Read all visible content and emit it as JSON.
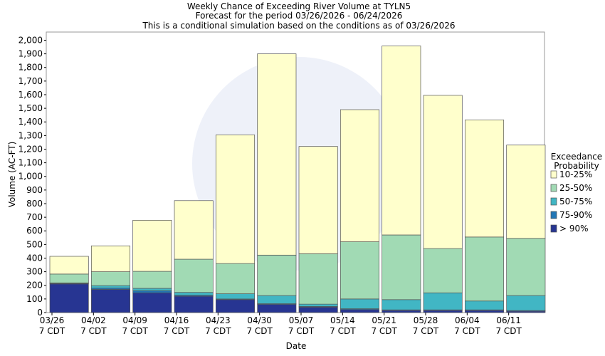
{
  "chart_data": {
    "type": "stacked_bar",
    "title": [
      "Weekly Chance of Exceeding River Volume at TYLN5",
      "Forecast for the period 03/26/2026 - 06/24/2026",
      "This is a conditional simulation based on the conditions as of 03/26/2026"
    ],
    "x_label": "Date",
    "y_label": "Volume (AC-FT)",
    "legend_title": "Exceedance Probability",
    "categories": [
      "03/26\n7 CDT",
      "04/02\n7 CDT",
      "04/09\n7 CDT",
      "04/16\n7 CDT",
      "04/23\n7 CDT",
      "04/30\n7 CDT",
      "05/07\n7 CDT",
      "05/14\n7 CDT",
      "05/21\n7 CDT",
      "05/28\n7 CDT",
      "06/04\n7 CDT",
      "06/11\n7 CDT"
    ],
    "series": [
      {
        "name": "> 90%",
        "color": "#273592",
        "values": [
          210,
          170,
          145,
          120,
          95,
          60,
          40,
          22,
          15,
          15,
          15,
          10
        ]
      },
      {
        "name": "75-90%",
        "color": "#2176b5",
        "values": [
          5,
          10,
          15,
          8,
          5,
          5,
          5,
          6,
          5,
          5,
          5,
          5
        ]
      },
      {
        "name": "50-75%",
        "color": "#41b6c4",
        "values": [
          3,
          18,
          18,
          20,
          38,
          60,
          17,
          72,
          75,
          125,
          65,
          110
        ]
      },
      {
        "name": "25-50%",
        "color": "#a1dab4",
        "values": [
          65,
          102,
          125,
          244,
          222,
          297,
          370,
          420,
          475,
          325,
          470,
          420
        ]
      },
      {
        "name": "10-25%",
        "color": "#ffffcc",
        "values": [
          130,
          190,
          375,
          430,
          945,
          1478,
          788,
          970,
          1388,
          1125,
          860,
          685
        ]
      }
    ],
    "ylim": [
      0,
      2060
    ],
    "yticks": [
      0,
      100,
      200,
      300,
      400,
      500,
      600,
      700,
      800,
      900,
      {
        "value": 1000,
        "label": "1,000"
      },
      {
        "value": 1100,
        "label": "1,100"
      },
      {
        "value": 1200,
        "label": "1,200"
      },
      {
        "value": 1300,
        "label": "1,300"
      },
      {
        "value": 1400,
        "label": "1,400"
      },
      {
        "value": 1500,
        "label": "1,500"
      },
      {
        "value": 1600,
        "label": "1,600"
      },
      {
        "value": 1700,
        "label": "1,700"
      },
      {
        "value": 1800,
        "label": "1,800"
      },
      {
        "value": 1900,
        "label": "1,900"
      },
      {
        "value": 2000,
        "label": "2,000"
      }
    ],
    "grid": false
  }
}
